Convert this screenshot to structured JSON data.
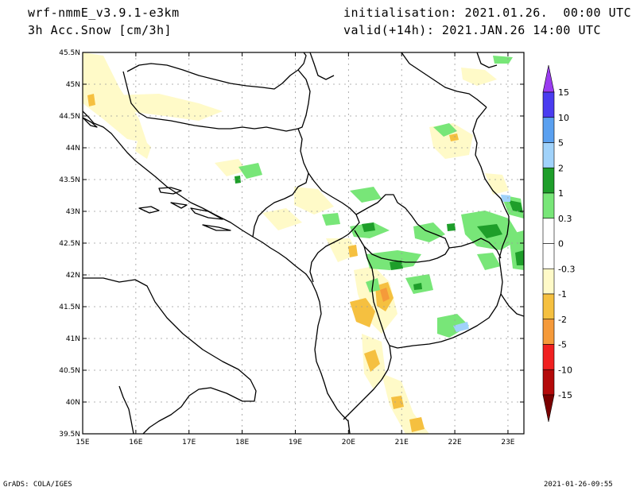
{
  "header": {
    "model": "wrf-nmmE_v3.9.1-e3km",
    "variable": "3h Acc.Snow [cm/3h]",
    "init": "initialisation: 2021.01.26.  00:00 UTC",
    "valid": "valid(+14h): 2021.JAN.26 14:00 UTC"
  },
  "footer": {
    "left": "GrADS: COLA/IGES",
    "right": "2021-01-26-09:55"
  },
  "map": {
    "lon_range": [
      15,
      23.3
    ],
    "lat_range": [
      39.5,
      45.5
    ],
    "lon_ticks": [
      "15E",
      "16E",
      "17E",
      "18E",
      "19E",
      "20E",
      "21E",
      "22E",
      "23E"
    ],
    "lat_ticks": [
      "45.5N",
      "45N",
      "44.5N",
      "44N",
      "43.5N",
      "43N",
      "42.5N",
      "42N",
      "41.5N",
      "41N",
      "40.5N",
      "40N",
      "39.5N"
    ],
    "grid": true
  },
  "colorbar": {
    "labels": [
      "15",
      "10",
      "5",
      "2",
      "1",
      "0.3",
      "0",
      "-0.3",
      "-1",
      "-2",
      "-5",
      "-10",
      "-15"
    ],
    "colors": [
      "#4a3cf0",
      "#5aa0f0",
      "#a0d2fa",
      "#1e9e2a",
      "#78e678",
      "#ffffff",
      "#ffffff",
      "#fffac8",
      "#f5c040",
      "#f59a3a",
      "#f02020",
      "#b40a0a"
    ],
    "top_color": "#9a3cf0",
    "bottom_color": "#7a0000"
  },
  "fields": {
    "snow_light_color": "#fffac8",
    "snow_mod_color": "#f5c040",
    "snow_heavy_color": "#f59a3a",
    "rain_light_color": "#78e678",
    "rain_mod_color": "#1e9e2a",
    "rain_blue_color": "#a0d2fa"
  }
}
